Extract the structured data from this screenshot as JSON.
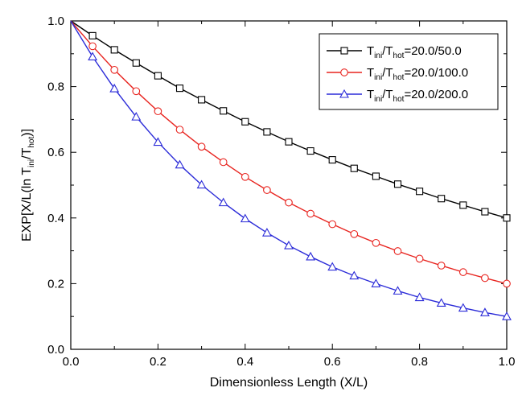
{
  "chart_data": {
    "type": "line",
    "xlabel": "Dimensionless Length (X/L)",
    "ylabel": {
      "prefix": "EXP[X/L(ln T",
      "sub1": "ini",
      "mid": "/T",
      "sub2": "hot",
      "suffix": ")]"
    },
    "xlim": [
      0.0,
      1.0
    ],
    "ylim": [
      0.0,
      1.0
    ],
    "xticks": [
      "0.0",
      "0.2",
      "0.4",
      "0.6",
      "0.8",
      "1.0"
    ],
    "yticks": [
      "0.0",
      "0.2",
      "0.4",
      "0.6",
      "0.8",
      "1.0"
    ],
    "grid": false,
    "legend_position": "top-right",
    "x": [
      0.0,
      0.05,
      0.1,
      0.15,
      0.2,
      0.25,
      0.3,
      0.35,
      0.4,
      0.45,
      0.5,
      0.55,
      0.6,
      0.65,
      0.7,
      0.75,
      0.8,
      0.85,
      0.9,
      0.95,
      1.0
    ],
    "series": [
      {
        "legend": {
          "a": "T",
          "s1": "ini",
          "b": "/T",
          "s2": "hot",
          "c": "=20.0/50.0"
        },
        "marker": "square",
        "color": "#000000",
        "values": [
          1.0,
          0.955,
          0.912,
          0.872,
          0.833,
          0.795,
          0.76,
          0.726,
          0.693,
          0.662,
          0.632,
          0.604,
          0.577,
          0.551,
          0.527,
          0.503,
          0.481,
          0.459,
          0.439,
          0.419,
          0.4
        ]
      },
      {
        "legend": {
          "a": "T",
          "s1": "ini",
          "b": "/T",
          "s2": "hot",
          "c": "=20.0/100.0"
        },
        "marker": "circle",
        "color": "#e8241f",
        "values": [
          1.0,
          0.923,
          0.851,
          0.786,
          0.725,
          0.669,
          0.617,
          0.57,
          0.525,
          0.485,
          0.447,
          0.413,
          0.381,
          0.351,
          0.324,
          0.299,
          0.276,
          0.255,
          0.235,
          0.217,
          0.2
        ]
      },
      {
        "legend": {
          "a": "T",
          "s1": "ini",
          "b": "/T",
          "s2": "hot",
          "c": "=20.0/200.0"
        },
        "marker": "triangle",
        "color": "#2b2bd8",
        "values": [
          1.0,
          0.891,
          0.794,
          0.708,
          0.631,
          0.562,
          0.501,
          0.447,
          0.398,
          0.355,
          0.316,
          0.282,
          0.251,
          0.224,
          0.2,
          0.178,
          0.158,
          0.141,
          0.126,
          0.112,
          0.1
        ]
      }
    ]
  }
}
